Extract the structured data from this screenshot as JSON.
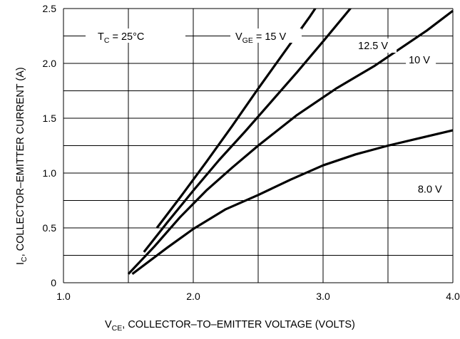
{
  "chart_data": {
    "type": "line",
    "xlabel": {
      "main": "V",
      "sub": "CE",
      "rest": ", COLLECTOR–TO–EMITTER VOLTAGE (VOLTS)"
    },
    "ylabel": {
      "main": "I",
      "sub": "C",
      "rest": ", COLLECTOR–EMITTER CURRENT (A)"
    },
    "xlim": [
      1.0,
      4.0
    ],
    "ylim": [
      0,
      2.5
    ],
    "x_ticks": [
      "1.0",
      "2.0",
      "3.0",
      "4.0"
    ],
    "y_ticks": [
      "0",
      "0.5",
      "1.0",
      "1.5",
      "2.0",
      "2.5"
    ],
    "grid": true,
    "annotation_tc": {
      "main": "T",
      "sub": "C",
      "rest": " = 25°C"
    },
    "annotation_vge": {
      "main": "V",
      "sub": "GE",
      "rest": " = 15 V"
    },
    "series": [
      {
        "name": "15 V",
        "points": [
          [
            1.72,
            0.5
          ],
          [
            1.9,
            0.78
          ],
          [
            2.1,
            1.1
          ],
          [
            2.3,
            1.43
          ],
          [
            2.5,
            1.77
          ],
          [
            2.7,
            2.1
          ],
          [
            2.9,
            2.43
          ],
          [
            3.08,
            2.75
          ]
        ]
      },
      {
        "name": "12.5 V",
        "points": [
          [
            1.62,
            0.28
          ],
          [
            1.8,
            0.55
          ],
          [
            2.0,
            0.84
          ],
          [
            2.2,
            1.12
          ],
          [
            2.4,
            1.38
          ],
          [
            2.6,
            1.65
          ],
          [
            2.8,
            1.92
          ],
          [
            3.0,
            2.2
          ],
          [
            3.28,
            2.6
          ]
        ]
      },
      {
        "name": "10 V",
        "points": [
          [
            1.5,
            0.08
          ],
          [
            1.7,
            0.33
          ],
          [
            1.9,
            0.6
          ],
          [
            2.1,
            0.84
          ],
          [
            2.3,
            1.05
          ],
          [
            2.5,
            1.25
          ],
          [
            2.8,
            1.53
          ],
          [
            3.1,
            1.77
          ],
          [
            3.4,
            1.98
          ],
          [
            3.8,
            2.3
          ],
          [
            4.0,
            2.48
          ]
        ]
      },
      {
        "name": "8.0 V",
        "points": [
          [
            1.53,
            0.08
          ],
          [
            1.8,
            0.32
          ],
          [
            2.0,
            0.49
          ],
          [
            2.25,
            0.67
          ],
          [
            2.5,
            0.8
          ],
          [
            2.75,
            0.94
          ],
          [
            3.0,
            1.07
          ],
          [
            3.25,
            1.17
          ],
          [
            3.5,
            1.25
          ],
          [
            3.75,
            1.32
          ],
          [
            4.0,
            1.39
          ]
        ]
      }
    ],
    "labels": [
      {
        "text": "12.5 V",
        "x": 3.27,
        "y": 2.13
      },
      {
        "text": "10 V",
        "x": 3.66,
        "y": 2.0
      },
      {
        "text": "8.0 V",
        "x": 3.73,
        "y": 0.82
      }
    ]
  }
}
